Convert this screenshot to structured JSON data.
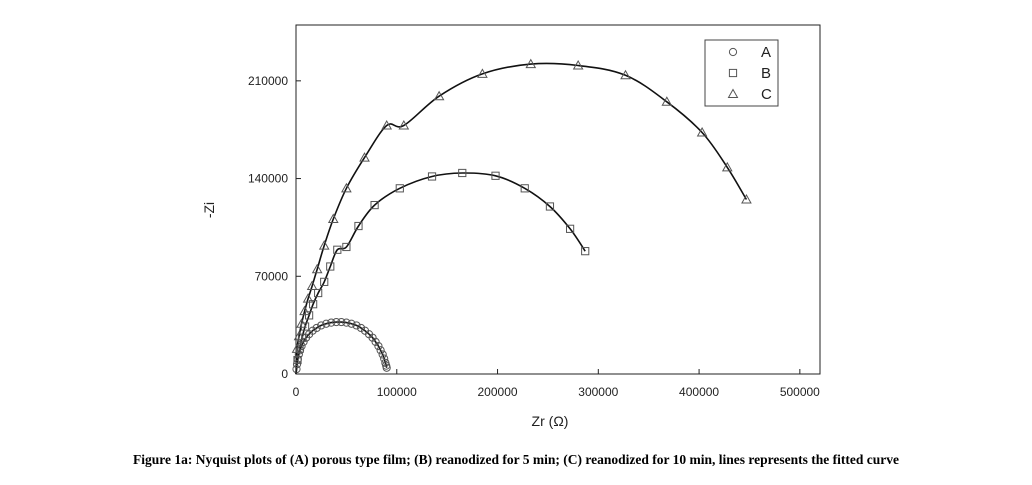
{
  "caption": "Figure 1a: Nyquist plots of (A) porous type film; (B) reanodized for 5 min; (C) reanodized for 10 min, lines represents the fitted curve",
  "chart_data": {
    "type": "scatter",
    "xlabel": "Zr (Ω)",
    "ylabel": "-Zi",
    "xlim": [
      0,
      520000
    ],
    "ylim": [
      0,
      250000
    ],
    "xticks": [
      0,
      100000,
      200000,
      300000,
      400000,
      500000
    ],
    "yticks": [
      0,
      70000,
      140000,
      210000
    ],
    "xtick_labels": [
      "0",
      "100000",
      "200000",
      "300000",
      "400000",
      "500000"
    ],
    "ytick_labels": [
      "0",
      "70000",
      "140000",
      "210000"
    ],
    "legend_position": "top-right",
    "series": [
      {
        "name": "A",
        "marker": "circle",
        "x": [
          500,
          1000,
          1800,
          2800,
          4000,
          5500,
          7500,
          10000,
          13000,
          16500,
          20500,
          25000,
          30000,
          35000,
          40000,
          45000,
          50000,
          55000,
          60000,
          64500,
          68500,
          72500,
          76000,
          79000,
          81800,
          84000,
          86000,
          87500,
          88700,
          89500,
          90000
        ],
        "y": [
          3500,
          7000,
          10500,
          14000,
          17000,
          20000,
          23000,
          26000,
          28500,
          31000,
          33000,
          34800,
          36000,
          36800,
          37200,
          37200,
          36800,
          36000,
          34800,
          33000,
          31000,
          28500,
          26000,
          23000,
          20000,
          17000,
          14000,
          11000,
          8000,
          6000,
          4500
        ]
      },
      {
        "name": "B",
        "marker": "square",
        "x": [
          1500,
          3500,
          6000,
          9000,
          13000,
          17000,
          22000,
          28000,
          34000,
          41000,
          50000,
          62000,
          78000,
          103000,
          135000,
          165000,
          198000,
          227000,
          252000,
          272000,
          287000
        ],
        "y": [
          10000,
          18000,
          26000,
          34000,
          42000,
          50000,
          58000,
          66000,
          77000,
          89000,
          91000,
          106000,
          121000,
          133000,
          141500,
          144000,
          142000,
          133000,
          120000,
          104000,
          88000
        ]
      },
      {
        "name": "C",
        "marker": "triangle",
        "x": [
          1000,
          3000,
          5500,
          8500,
          12000,
          16000,
          21000,
          28000,
          37000,
          50000,
          68000,
          90000,
          107000,
          142000,
          185000,
          233000,
          280000,
          327000,
          368000,
          403000,
          428000,
          447000
        ],
        "y": [
          18000,
          27000,
          36000,
          45000,
          54000,
          63000,
          75000,
          92000,
          111000,
          133000,
          155000,
          178000,
          178000,
          199000,
          215000,
          222000,
          221000,
          214000,
          195000,
          173000,
          148000,
          125000
        ]
      }
    ]
  }
}
